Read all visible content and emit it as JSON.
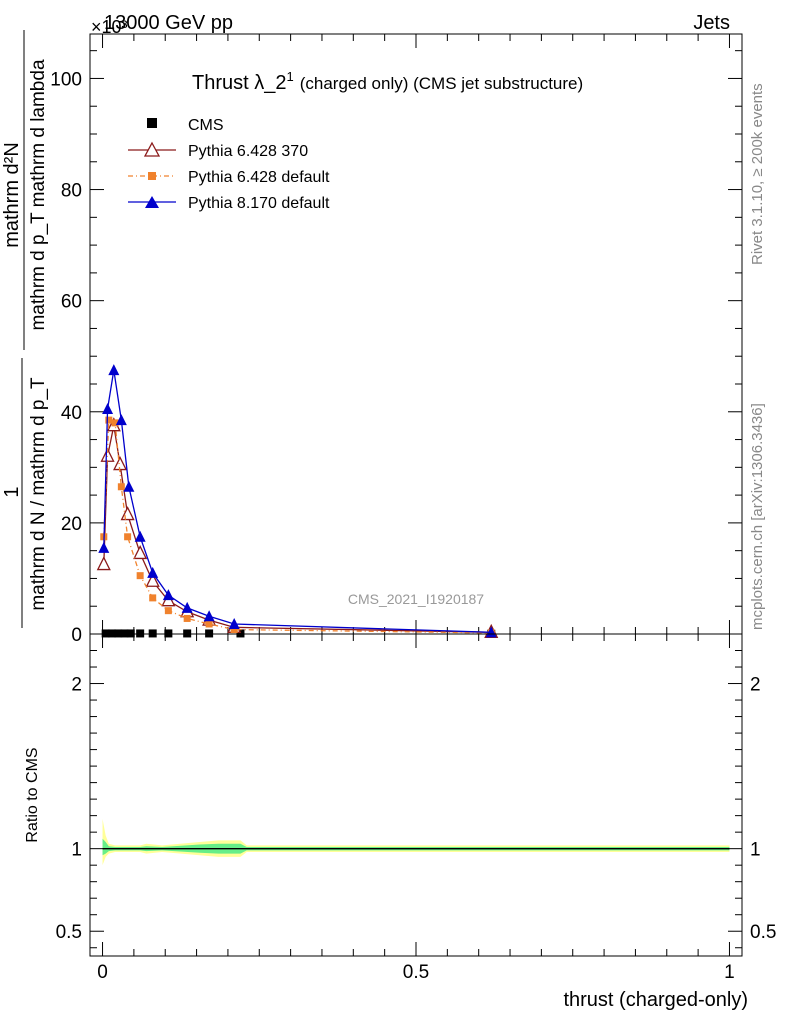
{
  "header": {
    "energy_label": "13000 GeV pp",
    "exponent_label": "×10³",
    "category_label": "Jets",
    "title_main": "Thrust λ_2",
    "title_sup": "1",
    "title_tail": "(charged only) (CMS jet substructure)",
    "analysis_id": "CMS_2021_I1920187",
    "side_label_top": "Rivet 3.1.10, ≥ 200k events",
    "side_label_bottom": "mcplots.cern.ch [arXiv:1306.3436]"
  },
  "ylabel_main": {
    "numerator": "mathrm d²N",
    "denominator": "mathrm d p_T mathrm d lambda",
    "prefactor": "1",
    "prefactor_den": "mathrm d N / mathrm d p_T"
  },
  "ylabel_ratio": "Ratio to CMS",
  "xlabel": "thrust (charged-only)",
  "colors": {
    "cms": "#000000",
    "py6_370": "#8b1a1a",
    "py6_default": "#f0822d",
    "py8": "#0000cc",
    "band_outer": "#ffff99",
    "band_inner": "#66ee88"
  },
  "chart_data": [
    {
      "type": "line",
      "name": "main",
      "title": "Thrust λ_2^1 (charged only) (CMS jet substructure)",
      "xlabel": "",
      "ylabel": "1/(dN/dp_T) d²N/(dp_T dλ)",
      "y_scale_factor": "×10³",
      "xlim": [
        -0.02,
        1.02
      ],
      "ylim": [
        0,
        108
      ],
      "yticks": [
        0,
        20,
        40,
        60,
        80,
        100
      ],
      "xticks": [
        0,
        0.5,
        1
      ],
      "legend_position": "top-left",
      "series": [
        {
          "name": "CMS",
          "marker": "filled-square",
          "x": [
            0.005,
            0.015,
            0.025,
            0.035,
            0.045,
            0.06,
            0.08,
            0.105,
            0.135,
            0.17,
            0.22,
            0.62
          ],
          "y": [
            0.1,
            0.1,
            0.1,
            0.1,
            0.1,
            0.1,
            0.1,
            0.1,
            0.1,
            0.1,
            0.1,
            0.05
          ]
        },
        {
          "name": "Pythia 6.428 370",
          "marker": "open-triangle",
          "x": [
            0.002,
            0.008,
            0.018,
            0.028,
            0.04,
            0.06,
            0.08,
            0.105,
            0.135,
            0.17,
            0.21,
            0.62
          ],
          "y": [
            12.5,
            32,
            37.5,
            30.5,
            21.5,
            14.5,
            9.5,
            6,
            4,
            2.5,
            1.2,
            0.3
          ]
        },
        {
          "name": "Pythia 6.428 default",
          "marker": "filled-square-small",
          "x": [
            0.002,
            0.01,
            0.02,
            0.03,
            0.04,
            0.06,
            0.08,
            0.105,
            0.135,
            0.17,
            0.21,
            0.62
          ],
          "y": [
            17.5,
            38.5,
            38,
            26.5,
            17.5,
            10.5,
            6.5,
            4.2,
            2.8,
            1.8,
            0.8,
            0.2
          ]
        },
        {
          "name": "Pythia 8.170 default",
          "marker": "filled-triangle",
          "x": [
            0.002,
            0.008,
            0.018,
            0.03,
            0.042,
            0.06,
            0.08,
            0.105,
            0.135,
            0.17,
            0.21,
            0.62
          ],
          "y": [
            15.5,
            40.5,
            47.5,
            38.5,
            26.5,
            17.5,
            11,
            7,
            4.7,
            3.2,
            1.8,
            0.3
          ]
        }
      ]
    },
    {
      "type": "line",
      "name": "ratio",
      "xlabel": "thrust (charged-only)",
      "ylabel": "Ratio to CMS",
      "xlim": [
        -0.02,
        1.02
      ],
      "ylim": [
        0.35,
        2.3
      ],
      "yticks": [
        0.5,
        1,
        2
      ],
      "xticks": [
        0,
        0.5,
        1
      ],
      "reference_line": 1,
      "band": {
        "x": [
          0,
          0.005,
          0.01,
          0.02,
          0.06,
          0.07,
          0.095,
          0.155,
          0.185,
          0.22,
          0.23,
          1.0
        ],
        "outer_lo": [
          0.9,
          0.95,
          0.97,
          0.98,
          0.98,
          0.97,
          0.98,
          0.96,
          0.95,
          0.95,
          0.98,
          0.98
        ],
        "outer_hi": [
          1.18,
          1.08,
          1.03,
          1.02,
          1.02,
          1.03,
          1.02,
          1.04,
          1.05,
          1.05,
          1.02,
          1.02
        ],
        "inner_lo": [
          0.96,
          0.97,
          0.985,
          0.99,
          0.99,
          0.985,
          0.99,
          0.975,
          0.97,
          0.97,
          0.99,
          0.99
        ],
        "inner_hi": [
          1.06,
          1.04,
          1.015,
          1.01,
          1.01,
          1.015,
          1.01,
          1.025,
          1.03,
          1.03,
          1.01,
          1.01
        ]
      }
    }
  ]
}
